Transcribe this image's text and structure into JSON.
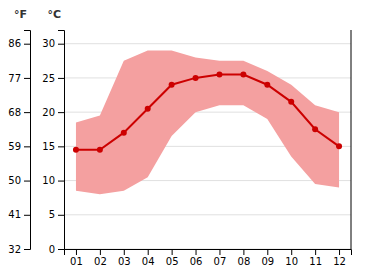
{
  "chart_data": {
    "type": "line",
    "categories": [
      "01",
      "02",
      "03",
      "04",
      "05",
      "06",
      "07",
      "08",
      "09",
      "10",
      "11",
      "12"
    ],
    "series": [
      {
        "type": "area",
        "color": "#f4a0a0",
        "values": [
          8.5,
          8.0,
          8.5,
          10.5,
          16.5,
          20.0,
          21.0,
          21.0,
          19.0,
          13.5,
          9.5,
          9.0
        ],
        "high": [
          18.5,
          19.5,
          27.5,
          29.0,
          29.0,
          28.0,
          27.5,
          27.5,
          26.0,
          24.0,
          21.0,
          20.0
        ]
      },
      {
        "type": "line",
        "color": "#cc0000",
        "marker": "circle",
        "values": [
          14.5,
          14.5,
          17.0,
          20.5,
          24.0,
          25.0,
          25.5,
          25.5,
          24.0,
          21.5,
          17.5,
          15.0
        ]
      }
    ],
    "y_label": "°C",
    "y2_label": "°F",
    "ylim": [
      0,
      32
    ],
    "yticks": [
      0,
      5,
      10,
      15,
      20,
      25,
      30
    ],
    "y2lim": [
      32,
      89.6
    ],
    "y2ticks": [
      32,
      41,
      50,
      59,
      68,
      77,
      86
    ],
    "grid": true
  }
}
